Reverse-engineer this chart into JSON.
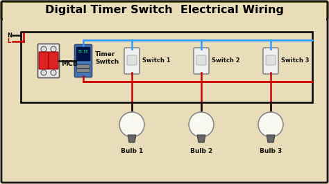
{
  "title": "Digital Timer Switch  Electrical Wiring",
  "bg_color": "#e8ddb8",
  "title_bg": "#ffff00",
  "title_color": "#000000",
  "border_color": "#1a1a1a",
  "wire_black": "#111111",
  "wire_red": "#cc0000",
  "wire_blue": "#3399ff",
  "mcb_label": "MCB",
  "timer_label": "Timer\nSwitch",
  "sw_labels": [
    "Switch 1",
    "Switch 2",
    "Switch 3"
  ],
  "bulb_labels": [
    "Bulb 1",
    "Bulb 2",
    "Bulb 3"
  ],
  "N_label": "N",
  "L_label": "L",
  "figsize": [
    4.74,
    2.66
  ],
  "dpi": 100
}
